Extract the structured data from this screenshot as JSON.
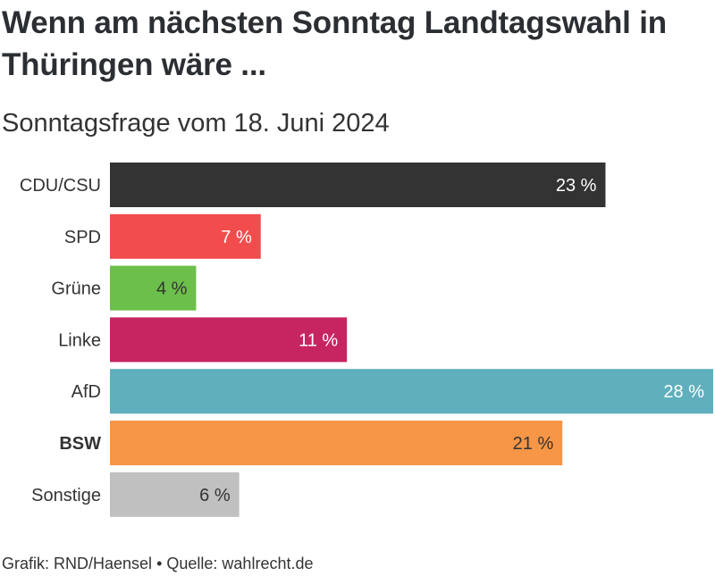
{
  "title": "Wenn am nächsten Sonntag Landtagswahl in Thüringen wäre ...",
  "subtitle": "Sonntagsfrage vom 18. Juni 2024",
  "footer": {
    "credit": "Grafik: RND/Haensel",
    "separator": "•",
    "source": "Quelle: wahlrecht.de"
  },
  "chart_data": {
    "type": "bar",
    "orientation": "horizontal",
    "title": "Wenn am nächsten Sonntag Landtagswahl in Thüringen wäre ...",
    "subtitle": "Sonntagsfrage vom 18. Juni 2024",
    "unit": "%",
    "xlim": [
      0,
      28
    ],
    "grid": false,
    "legend": "none",
    "categories": [
      "CDU/CSU",
      "SPD",
      "Grüne",
      "Linke",
      "AfD",
      "BSW",
      "Sonstige"
    ],
    "values": [
      23,
      7,
      4,
      11,
      28,
      21,
      6
    ],
    "labels": [
      "23 %",
      "7 %",
      "4 %",
      "11 %",
      "28 %",
      "21 %",
      "6 %"
    ],
    "colors": [
      "#333333",
      "#f34c4c",
      "#6cbf4a",
      "#c72462",
      "#5fafbd",
      "#f79646",
      "#c0c0c0"
    ],
    "label_colors": [
      "#ffffff",
      "#ffffff",
      "#333333",
      "#ffffff",
      "#ffffff",
      "#333333",
      "#333333"
    ],
    "bold_categories": [
      "BSW"
    ]
  }
}
